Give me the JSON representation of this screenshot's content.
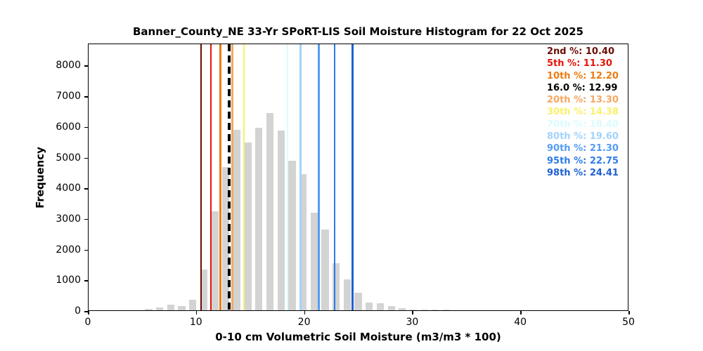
{
  "chart_data": {
    "type": "bar",
    "title": "Banner_County_NE 33-Yr SPoRT-LIS Soil Moisture Histogram for 22 Oct 2025",
    "xlabel": "0-10 cm Volumetric Soil Moisture (m3/m3 * 100)",
    "ylabel": "Frequency",
    "xlim": [
      0,
      50
    ],
    "ylim": [
      0,
      8720
    ],
    "x_ticks": [
      "0",
      "10",
      "20",
      "30",
      "40",
      "50"
    ],
    "x_tick_values": [
      0,
      10,
      20,
      30,
      40,
      50
    ],
    "y_ticks": [
      "0",
      "1000",
      "2000",
      "3000",
      "4000",
      "5000",
      "6000",
      "7000",
      "8000"
    ],
    "y_tick_values": [
      0,
      1000,
      2000,
      3000,
      4000,
      5000,
      6000,
      7000,
      8000
    ],
    "grid": false,
    "legend_position": "upper right",
    "histogram": {
      "bar_color": "#d3d3d3",
      "bin_start": 5.05,
      "bin_width": 1.02,
      "bar_width_frac": 0.65,
      "bin_centers": [
        5.56,
        6.58,
        7.6,
        8.62,
        9.64,
        10.66,
        11.68,
        12.7,
        13.72,
        14.74,
        15.76,
        16.78,
        17.8,
        18.82,
        19.84,
        20.86,
        21.88,
        22.9,
        23.92,
        24.94,
        25.96,
        26.98,
        28.0,
        29.02,
        30.04,
        31.06,
        32.08,
        33.1
      ],
      "frequencies": [
        35,
        95,
        185,
        145,
        355,
        1330,
        3220,
        4670,
        5890,
        5475,
        5940,
        6430,
        5855,
        4875,
        4430,
        3180,
        2640,
        1540,
        1005,
        580,
        260,
        235,
        140,
        70,
        30,
        15,
        15,
        12
      ]
    },
    "percentiles": [
      {
        "label": "2nd %",
        "value": 10.4,
        "display": "2nd %: 10.40",
        "color": "#6b0d03",
        "style": "solid"
      },
      {
        "label": "5th %",
        "value": 11.3,
        "display": "5th %: 11.30",
        "color": "#e51508",
        "style": "solid"
      },
      {
        "label": "10th %",
        "value": 12.2,
        "display": "10th %: 12.20",
        "color": "#ec7c12",
        "style": "solid"
      },
      {
        "label": "16.0 %",
        "value": 12.99,
        "display": "16.0 %: 12.99",
        "color": "#000000",
        "style": "dashed"
      },
      {
        "label": "20th %",
        "value": 13.3,
        "display": "20th %: 13.30",
        "color": "#f6a762",
        "style": "solid"
      },
      {
        "label": "30th %",
        "value": 14.38,
        "display": "30th %: 14.38",
        "color": "#f8f06d",
        "style": "solid"
      },
      {
        "label": "70th %",
        "value": 18.4,
        "display": "70th %: 18.40",
        "color": "#dcfbfd",
        "style": "solid"
      },
      {
        "label": "80th %",
        "value": 19.6,
        "display": "80th %: 19.60",
        "color": "#a2d3fa",
        "style": "solid"
      },
      {
        "label": "90th %",
        "value": 21.3,
        "display": "90th %: 21.30",
        "color": "#569bf5",
        "style": "solid"
      },
      {
        "label": "95th %",
        "value": 22.75,
        "display": "95th %: 22.75",
        "color": "#2d7ce9",
        "style": "solid"
      },
      {
        "label": "98th %",
        "value": 24.41,
        "display": "98th %: 24.41",
        "color": "#1f60d1",
        "style": "solid"
      }
    ]
  }
}
